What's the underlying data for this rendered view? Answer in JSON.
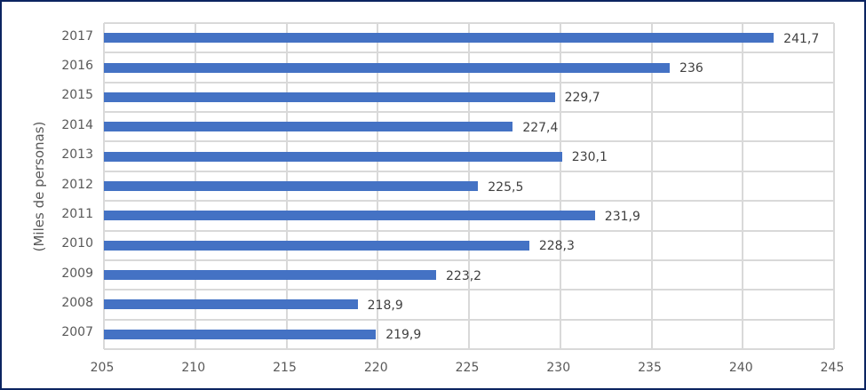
{
  "chart_data": {
    "type": "bar",
    "orientation": "horizontal",
    "title": "",
    "xlabel": "",
    "ylabel": "(Miles de personas)",
    "categories": [
      "2017",
      "2016",
      "2015",
      "2014",
      "2013",
      "2012",
      "2011",
      "2010",
      "2009",
      "2008",
      "2007"
    ],
    "values": [
      241.7,
      236,
      229.7,
      227.4,
      230.1,
      225.5,
      231.9,
      228.3,
      223.2,
      218.9,
      219.9
    ],
    "value_labels": [
      "241,7",
      "236",
      "229,7",
      "227,4",
      "230,1",
      "225,5",
      "231,9",
      "228,3",
      "223,2",
      "218,9",
      "219,9"
    ],
    "xlim": [
      205,
      245
    ],
    "x_ticks": [
      "205",
      "210",
      "215",
      "220",
      "225",
      "230",
      "235",
      "240",
      "245"
    ],
    "grid": true,
    "legend": null,
    "bar_color": "#4472c4",
    "border_color": "#0b2461"
  }
}
